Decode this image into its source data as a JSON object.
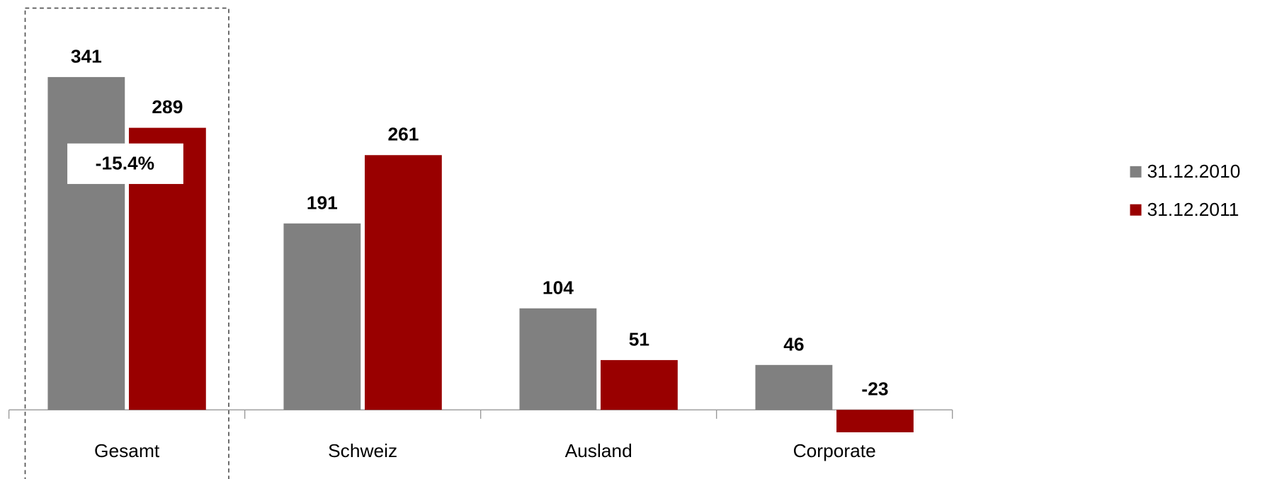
{
  "chart_data": {
    "type": "bar",
    "categories": [
      "Gesamt",
      "Schweiz",
      "Ausland",
      "Corporate"
    ],
    "series": [
      {
        "name": "31.12.2010",
        "color": "#808080",
        "values": [
          341,
          191,
          104,
          46
        ]
      },
      {
        "name": "31.12.2011",
        "color": "#990000",
        "values": [
          289,
          261,
          51,
          -23
        ]
      }
    ],
    "ylim": [
      -70,
      400
    ],
    "annotations": [
      "-15.4%"
    ],
    "legend": "right"
  }
}
